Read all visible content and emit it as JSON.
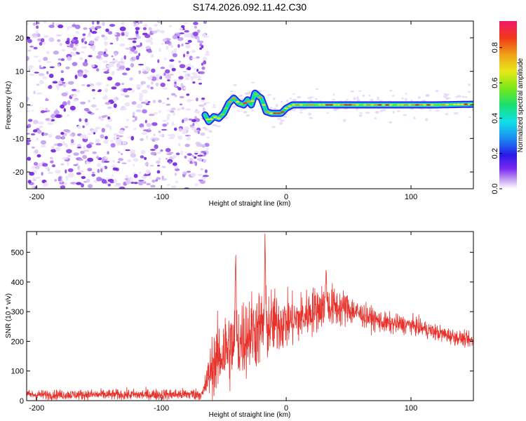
{
  "title": "S174.2026.092.11.42.C30",
  "chart_data": [
    {
      "type": "heatmap",
      "name": "spectrogram",
      "xlabel": "Height of straight line (km)",
      "ylabel": "Frequency (Hz)",
      "xlim": [
        -208,
        150
      ],
      "ylim": [
        -25,
        25
      ],
      "xticks": [
        -200,
        -100,
        0,
        100
      ],
      "yticks": [
        -20,
        -10,
        0,
        10,
        20
      ],
      "noise_region_x": [
        -208,
        -65
      ],
      "ridge": {
        "x": [
          -65,
          -62,
          -58,
          -54,
          -50,
          -46,
          -42,
          -38,
          -34,
          -31,
          -28,
          -25,
          -22,
          -20,
          -18,
          -16,
          -12,
          -8,
          -4,
          0,
          5,
          10,
          20,
          40,
          60,
          80,
          100,
          120,
          150
        ],
        "f": [
          -3,
          -5,
          -3.5,
          -4,
          -2.5,
          0.5,
          2,
          0.5,
          0,
          1.5,
          0,
          3.5,
          2.5,
          2,
          0,
          -2,
          -2.5,
          -2.5,
          -2.5,
          -1,
          0,
          0,
          0,
          0,
          0,
          0,
          0,
          0,
          0.2
        ]
      },
      "colorbar": {
        "label": "Normalized spectral amplitude",
        "ticks": [
          "0.0",
          "0.2",
          "0.4",
          "0.6",
          "0.8"
        ],
        "range": [
          0,
          0.95
        ]
      }
    },
    {
      "type": "line",
      "name": "snr",
      "xlabel": "Height of straight line (km)",
      "ylabel": "SNR (10 * v/v)",
      "xlim": [
        -208,
        150
      ],
      "ylim": [
        0,
        570
      ],
      "xticks": [
        -200,
        -100,
        0,
        100
      ],
      "yticks": [
        0,
        100,
        200,
        300,
        400,
        500
      ],
      "color": "#e8312a",
      "trend": {
        "x": [
          -208,
          -120,
          -67,
          -60,
          -50,
          -40,
          -30,
          -20,
          -10,
          0,
          10,
          20,
          30,
          40,
          50,
          60,
          80,
          100,
          120,
          150
        ],
        "y": [
          20,
          20,
          22,
          110,
          170,
          190,
          230,
          245,
          260,
          265,
          275,
          300,
          320,
          315,
          310,
          290,
          260,
          255,
          230,
          200
        ]
      },
      "spread": {
        "x": [
          -208,
          -67,
          -60,
          -50,
          -40,
          -20,
          0,
          20,
          40,
          60,
          100,
          150
        ],
        "y": [
          8,
          10,
          50,
          70,
          70,
          65,
          45,
          40,
          35,
          20,
          15,
          12
        ]
      },
      "spikes": [
        {
          "x": -40.5,
          "y": 515
        },
        {
          "x": -17,
          "y": 570
        },
        {
          "x": 32,
          "y": 450
        }
      ]
    }
  ]
}
